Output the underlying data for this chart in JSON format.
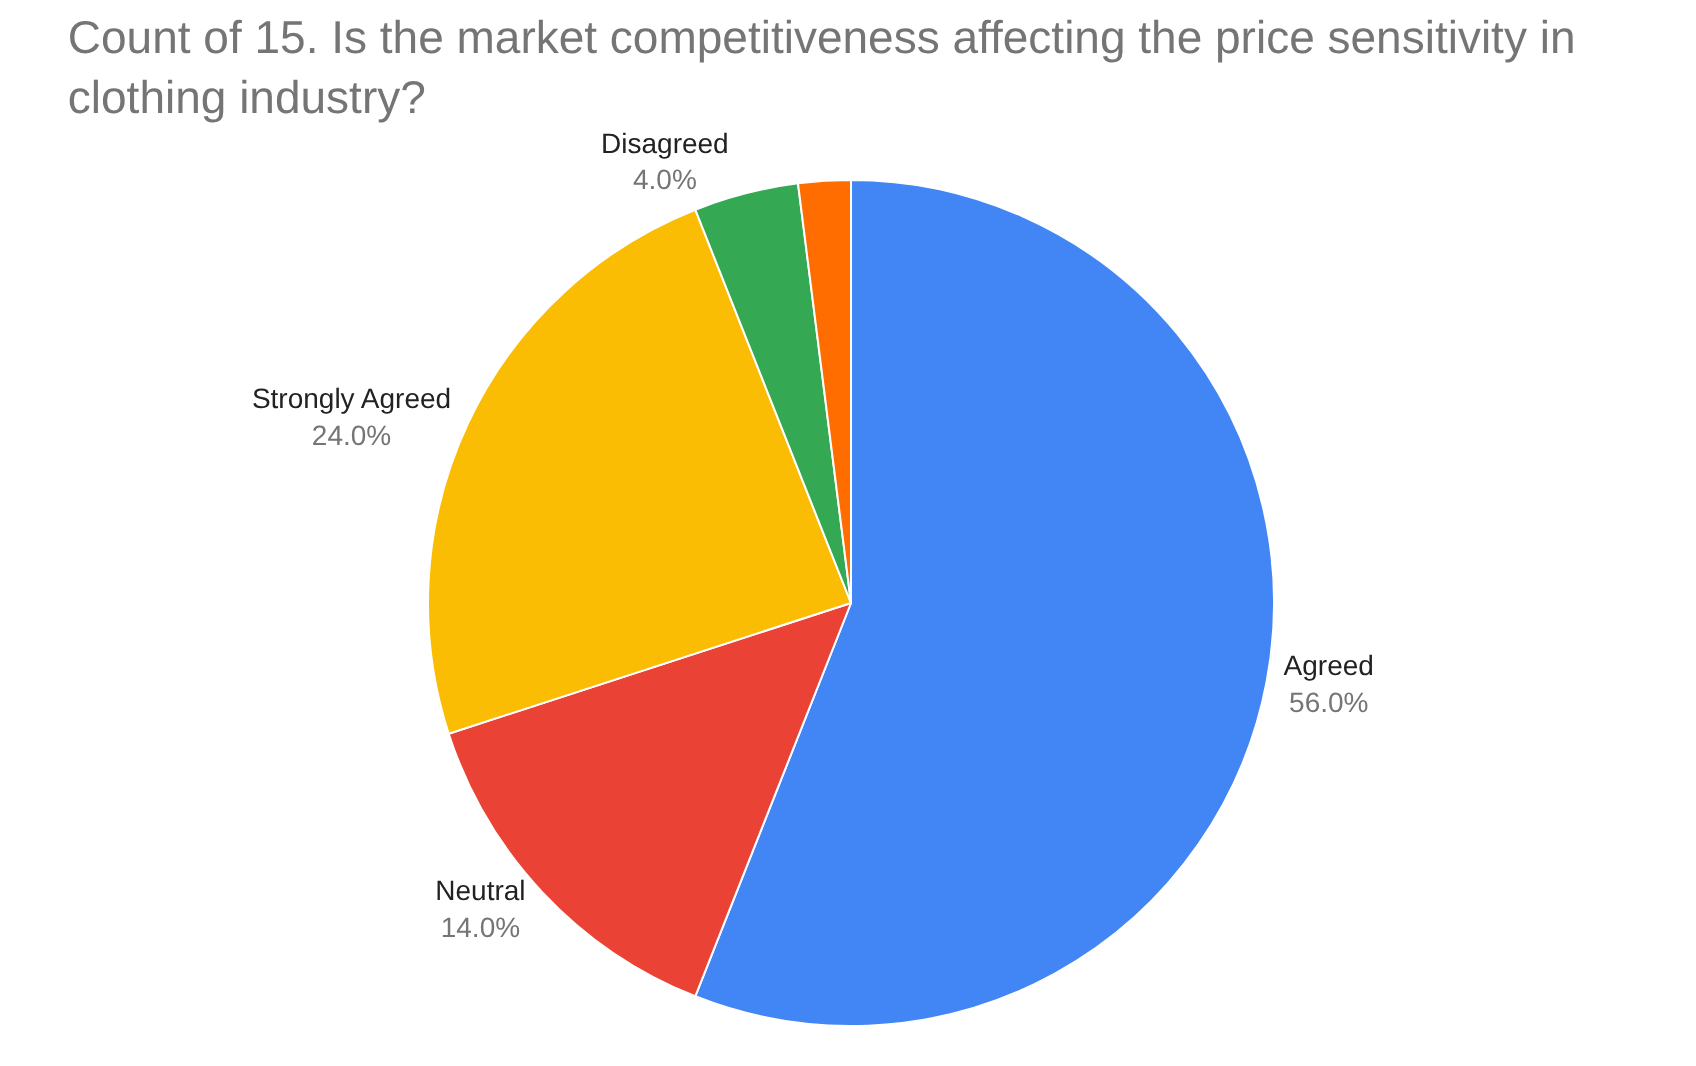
{
  "chart_data": {
    "type": "pie",
    "title": "Count of 15. Is the market competitiveness affecting the price sensitivity in clothing industry?",
    "categories": [
      "Agreed",
      "Neutral",
      "Strongly Agreed",
      "Disagreed",
      null
    ],
    "values": [
      56,
      14,
      24,
      4,
      2
    ],
    "value_labels": [
      "56.0%",
      "14.0%",
      "24.0%",
      "4.0%",
      null
    ],
    "colors": [
      "#4285f4",
      "#ea4335",
      "#fbbc04",
      "#34a853",
      "#ff6d01"
    ],
    "legend": false
  }
}
